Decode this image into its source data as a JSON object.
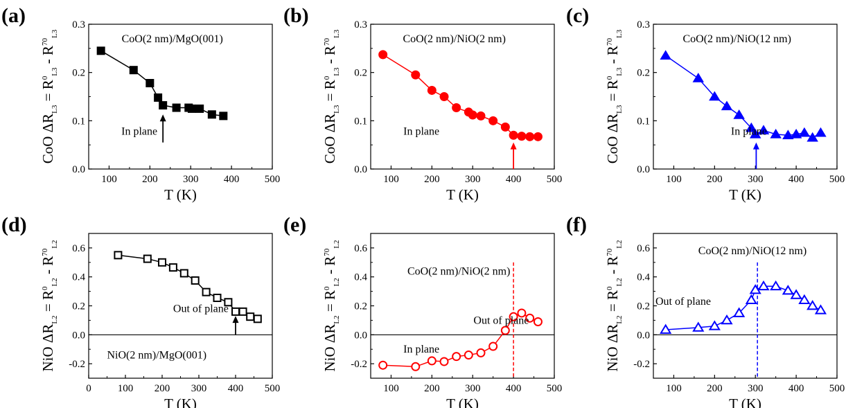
{
  "chart_data": [
    {
      "panel": "(a)",
      "type": "line",
      "xlabel": "T (K)",
      "ylabel": {
        "main": "CoO ΔR",
        "sub1": "L3",
        "mid": " = R",
        "sup2": "0",
        "sub2": "L3",
        "dash": " - R",
        "sup3": "70",
        "sub3": "L3"
      },
      "xlim": [
        50,
        500
      ],
      "ylim": [
        0.0,
        0.3
      ],
      "xticks": [
        "100",
        "200",
        "300",
        "400",
        "500"
      ],
      "yticks": [
        "0.0",
        "0.1",
        "0.2",
        "0.3"
      ],
      "color": "#000000",
      "marker": "square-filled",
      "zero_line": false,
      "series": [
        {
          "x": [
            80,
            160,
            200,
            220,
            232,
            265,
            295,
            303,
            322,
            352,
            380
          ],
          "y": [
            0.245,
            0.205,
            0.178,
            0.148,
            0.132,
            0.127,
            0.127,
            0.125,
            0.125,
            0.113,
            0.11
          ]
        }
      ],
      "annotations": [
        {
          "text": "CoO(2 nm)/MgO(001)",
          "x": 255,
          "y": 0.27
        },
        {
          "text": "In plane",
          "x": 130,
          "y": 0.078
        }
      ],
      "arrow": {
        "x": 232,
        "y_from": 0.055,
        "y_to": 0.113,
        "color": "#000000"
      }
    },
    {
      "panel": "(b)",
      "type": "line",
      "xlabel": "T (K)",
      "ylabel": {
        "main": "CoO ΔR",
        "sub1": "L3",
        "mid": " = R",
        "sup2": "0",
        "sub2": "L3",
        "dash": " - R",
        "sup3": "70",
        "sub3": "L3"
      },
      "xlim": [
        50,
        500
      ],
      "ylim": [
        0.0,
        0.3
      ],
      "xticks": [
        "100",
        "200",
        "300",
        "400",
        "500"
      ],
      "yticks": [
        "0.0",
        "0.1",
        "0.2",
        "0.3"
      ],
      "color": "#ff0000",
      "marker": "circle-filled",
      "zero_line": false,
      "series": [
        {
          "x": [
            80,
            160,
            200,
            230,
            260,
            290,
            300,
            320,
            350,
            380,
            400,
            420,
            440,
            460
          ],
          "y": [
            0.237,
            0.195,
            0.163,
            0.15,
            0.127,
            0.118,
            0.112,
            0.11,
            0.1,
            0.087,
            0.07,
            0.068,
            0.067,
            0.067
          ]
        }
      ],
      "annotations": [
        {
          "text": "CoO(2 nm)/NiO(2 nm)",
          "x": 255,
          "y": 0.27
        },
        {
          "text": "In plane",
          "x": 130,
          "y": 0.078
        }
      ],
      "arrow": {
        "x": 400,
        "y_from": 0.0,
        "y_to": 0.055,
        "color": "#ff0000"
      }
    },
    {
      "panel": "(c)",
      "type": "line",
      "xlabel": "T (K)",
      "ylabel": {
        "main": "CoO ΔR",
        "sub1": "L3",
        "mid": " = R",
        "sup2": "0",
        "sub2": "L3",
        "dash": " - R",
        "sup3": "70",
        "sub3": "L3"
      },
      "xlim": [
        50,
        500
      ],
      "ylim": [
        0.0,
        0.3
      ],
      "xticks": [
        "100",
        "200",
        "300",
        "400",
        "500"
      ],
      "yticks": [
        "0.0",
        "0.1",
        "0.2",
        "0.3"
      ],
      "color": "#0000ff",
      "marker": "triangle-filled",
      "zero_line": false,
      "series": [
        {
          "x": [
            80,
            160,
            200,
            230,
            260,
            290,
            300,
            320,
            350,
            380,
            400,
            420,
            440,
            460
          ],
          "y": [
            0.235,
            0.188,
            0.15,
            0.13,
            0.112,
            0.085,
            0.072,
            0.08,
            0.072,
            0.07,
            0.072,
            0.075,
            0.065,
            0.075
          ]
        }
      ],
      "annotations": [
        {
          "text": "CoO(2 nm)/NiO(12 nm)",
          "x": 255,
          "y": 0.27
        },
        {
          "text": "In plane",
          "x": 240,
          "y": 0.078
        }
      ],
      "arrow": {
        "x": 302,
        "y_from": 0.0,
        "y_to": 0.055,
        "color": "#0000ff"
      }
    },
    {
      "panel": "(d)",
      "type": "line",
      "xlabel": "T (K)",
      "ylabel": {
        "main": "NiO ΔR",
        "sub1": "L2",
        "mid": " = R",
        "sup2": "0",
        "sub2": "L2",
        "dash": " - R",
        "sup3": "70",
        "sub3": "L2"
      },
      "xlim": [
        0,
        500
      ],
      "ylim": [
        -0.3,
        0.7
      ],
      "xticks": [
        "0",
        "100",
        "200",
        "300",
        "400",
        "500"
      ],
      "yticks": [
        "-0.2",
        "0.0",
        "0.2",
        "0.4",
        "0.6"
      ],
      "color": "#000000",
      "marker": "square-open",
      "zero_line": true,
      "series": [
        {
          "x": [
            80,
            160,
            200,
            230,
            260,
            290,
            320,
            350,
            380,
            400,
            420,
            440,
            460
          ],
          "y": [
            0.55,
            0.525,
            0.5,
            0.465,
            0.425,
            0.375,
            0.295,
            0.255,
            0.225,
            0.16,
            0.16,
            0.125,
            0.11
          ]
        }
      ],
      "annotations": [
        {
          "text": "Out of plane",
          "x": 230,
          "y": 0.18
        },
        {
          "text": "NiO(2 nm)/MgO(001)",
          "x": 50,
          "y": -0.14
        }
      ],
      "arrow": {
        "x": 400,
        "y_from": 0.0,
        "y_to": 0.13,
        "color": "#000000"
      }
    },
    {
      "panel": "(e)",
      "type": "line",
      "xlabel": "T (K)",
      "ylabel": {
        "main": "NiO ΔR",
        "sub1": "L2",
        "mid": " = R",
        "sup2": "0",
        "sub2": "L2",
        "dash": " - R",
        "sup3": "70",
        "sub3": "L2"
      },
      "xlim": [
        50,
        500
      ],
      "ylim": [
        -0.3,
        0.7
      ],
      "xticks": [
        "100",
        "200",
        "300",
        "400",
        "500"
      ],
      "yticks": [
        "-0.2",
        "0.0",
        "0.2",
        "0.4",
        "0.6"
      ],
      "color": "#ff0000",
      "marker": "circle-open",
      "zero_line": true,
      "series": [
        {
          "x": [
            80,
            160,
            200,
            230,
            260,
            290,
            320,
            350,
            380,
            400,
            420,
            440,
            460
          ],
          "y": [
            -0.21,
            -0.22,
            -0.18,
            -0.185,
            -0.15,
            -0.14,
            -0.125,
            -0.08,
            0.03,
            0.125,
            0.15,
            0.115,
            0.09
          ]
        }
      ],
      "annotations": [
        {
          "text": "CoO(2 nm)/NiO(2 nm)",
          "x": 140,
          "y": 0.44
        },
        {
          "text": "Out of plane",
          "x": 302,
          "y": 0.1
        },
        {
          "text": "In plane",
          "x": 130,
          "y": -0.1
        }
      ],
      "vline": {
        "x": 400,
        "color": "#ff0000"
      }
    },
    {
      "panel": "(f)",
      "type": "line",
      "xlabel": "T (K)",
      "ylabel": {
        "main": "NiO ΔR",
        "sub1": "L2",
        "mid": " = R",
        "sup2": "0",
        "sub2": "L2",
        "dash": " - R",
        "sup3": "70",
        "sub3": "L2"
      },
      "xlim": [
        50,
        500
      ],
      "ylim": [
        -0.3,
        0.7
      ],
      "xticks": [
        "100",
        "200",
        "300",
        "400",
        "500"
      ],
      "yticks": [
        "-0.2",
        "0.0",
        "0.2",
        "0.4",
        "0.6"
      ],
      "color": "#0000ff",
      "marker": "triangle-open",
      "zero_line": true,
      "series": [
        {
          "x": [
            80,
            160,
            200,
            230,
            260,
            290,
            300,
            320,
            350,
            380,
            400,
            420,
            440,
            460
          ],
          "y": [
            0.035,
            0.05,
            0.06,
            0.1,
            0.15,
            0.24,
            0.31,
            0.335,
            0.335,
            0.305,
            0.275,
            0.24,
            0.2,
            0.17
          ]
        }
      ],
      "annotations": [
        {
          "text": "CoO(2 nm)/NiO(12 nm)",
          "x": 160,
          "y": 0.58
        },
        {
          "text": "Out of plane",
          "x": 55,
          "y": 0.23
        }
      ],
      "vline": {
        "x": 305,
        "color": "#0000ff"
      }
    }
  ]
}
